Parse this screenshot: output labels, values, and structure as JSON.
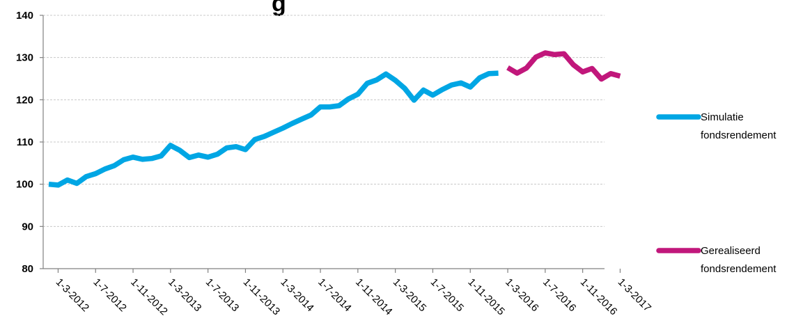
{
  "chart_data": {
    "type": "line",
    "title": "...g...",
    "ylim": [
      80,
      140
    ],
    "yticks": [
      80,
      90,
      100,
      110,
      120,
      130,
      140
    ],
    "x_start": "1-2-2012",
    "x_step_months": 1,
    "xtick_labels": [
      "1-3-2012",
      "1-7-2012",
      "1-11-2012",
      "1-3-2013",
      "1-7-2013",
      "1-11-2013",
      "1-3-2014",
      "1-7-2014",
      "1-11-2014",
      "1-3-2015",
      "1-7-2015",
      "1-11-2015",
      "1-3-2016",
      "1-7-2016",
      "1-11-2016",
      "1-3-2017"
    ],
    "grid": true,
    "legend_position": "right",
    "series": [
      {
        "name": "Simulatie fondsrendement",
        "color": "#00a6e4",
        "start_index": 0,
        "values": [
          100,
          99.8,
          101,
          100.2,
          101.8,
          102.5,
          103.6,
          104.4,
          105.8,
          106.4,
          105.9,
          106.1,
          106.7,
          109.2,
          108,
          106.3,
          106.9,
          106.4,
          107.1,
          108.6,
          108.9,
          108.2,
          110.6,
          111.3,
          112.3,
          113.3,
          114.4,
          115.4,
          116.4,
          118.3,
          118.3,
          118.6,
          120.2,
          121.3,
          123.9,
          124.7,
          126.1,
          124.6,
          122.7,
          119.9,
          122.3,
          121.1,
          122.4,
          123.5,
          124,
          123,
          125.2,
          126.2,
          126.3
        ]
      },
      {
        "name": "Gerealiseerd fondsrendement",
        "color": "#c1177b",
        "start_index": 49,
        "values": [
          127.6,
          126.3,
          127.5,
          130.1,
          131.1,
          130.7,
          130.9,
          128.3,
          126.6,
          127.4,
          124.9,
          126.2,
          125.6
        ]
      }
    ]
  }
}
